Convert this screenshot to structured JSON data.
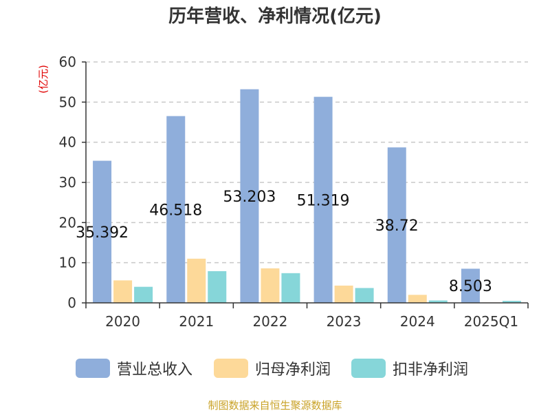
{
  "chart_data": {
    "type": "bar",
    "title": "历年营收、净利情况(亿元)",
    "ylabel": "(亿元)",
    "xlabel": "",
    "ylim": [
      0,
      60
    ],
    "yticks": [
      0,
      10,
      20,
      30,
      40,
      50,
      60
    ],
    "grid": "horizontal dashed",
    "legend_position": "bottom",
    "categories": [
      "2020",
      "2021",
      "2022",
      "2023",
      "2024",
      "2025Q1"
    ],
    "series": [
      {
        "name": "营业总收入",
        "color": "#8faedb",
        "values": [
          35.392,
          46.518,
          53.203,
          51.319,
          38.72,
          8.503
        ],
        "labels": [
          "35.392",
          "46.518",
          "53.203",
          "51.319",
          "38.72",
          "8.503"
        ]
      },
      {
        "name": "归母净利润",
        "color": "#fdd999",
        "values": [
          5.6,
          11.0,
          8.6,
          4.3,
          2.0,
          0.1
        ]
      },
      {
        "name": "扣非净利润",
        "color": "#86d6d9",
        "values": [
          4.0,
          7.9,
          7.4,
          3.7,
          0.6,
          0.5
        ]
      }
    ],
    "source": "制图数据来自恒生聚源数据库"
  }
}
